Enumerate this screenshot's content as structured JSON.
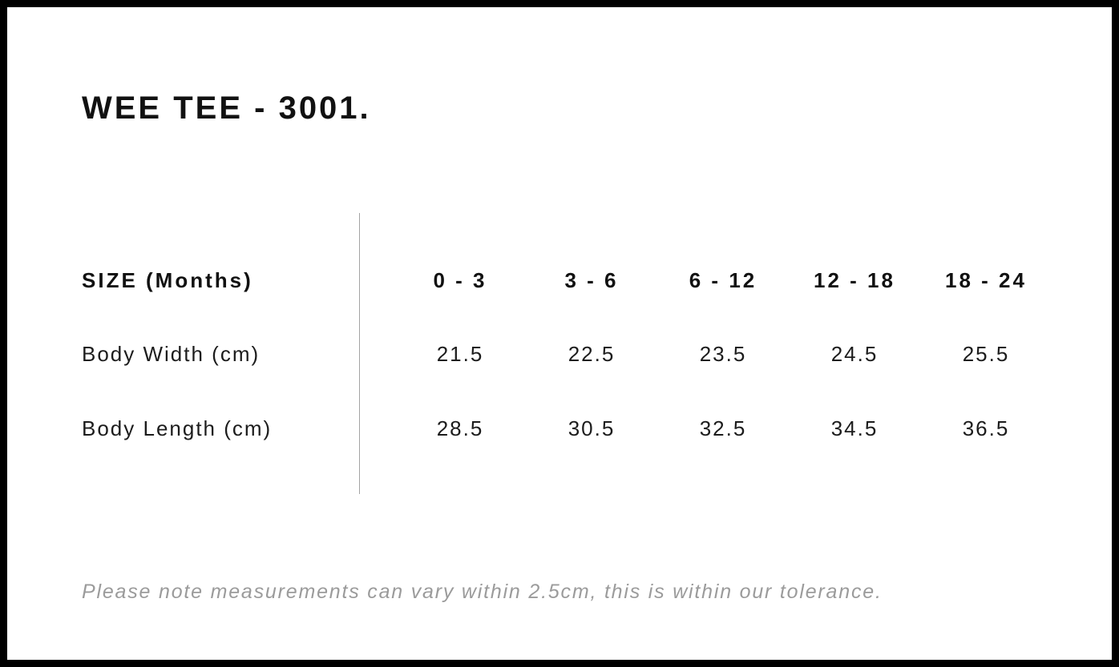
{
  "title": "WEE TEE - 3001.",
  "table": {
    "header": {
      "label": "SIZE (Months)",
      "columns": [
        "0 - 3",
        "3 - 6",
        "6 - 12",
        "12 - 18",
        "18 - 24"
      ]
    },
    "rows": [
      {
        "label": "Body Width (cm)",
        "values": [
          "21.5",
          "22.5",
          "23.5",
          "24.5",
          "25.5"
        ]
      },
      {
        "label": "Body Length (cm)",
        "values": [
          "28.5",
          "30.5",
          "32.5",
          "34.5",
          "36.5"
        ]
      }
    ]
  },
  "note": "Please note measurements can vary within 2.5cm, this is within our tolerance.",
  "colors": {
    "background": "#ffffff",
    "border": "#000000",
    "heading_text": "#111111",
    "value_text": "#1c1c1c",
    "label_muted": "#8c8c8c",
    "note_muted": "#9b9b9b",
    "divider": "#a3a3a3"
  }
}
